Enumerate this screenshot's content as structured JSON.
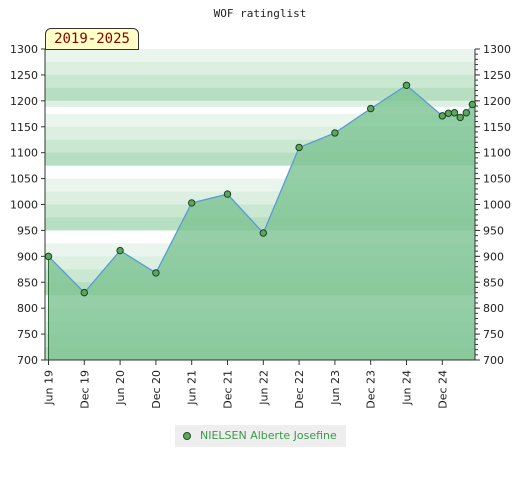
{
  "chart_data": {
    "type": "area",
    "title": "WOF ratinglist",
    "period_badge": "2019-2025",
    "ylim": [
      700,
      1300
    ],
    "yticks": [
      700,
      750,
      800,
      850,
      900,
      950,
      1000,
      1050,
      1100,
      1150,
      1200,
      1250,
      1300
    ],
    "ytick_labels": [
      "700",
      "750",
      "800",
      "850",
      "900",
      "950",
      "1000",
      "1050",
      "1100",
      "1150",
      "1200",
      "1250",
      "1300"
    ],
    "x_tick_labels": [
      "Jun 19",
      "Dec 19",
      "Jun 20",
      "Dec 20",
      "Jun 21",
      "Dec 21",
      "Jun 22",
      "Dec 22",
      "Jun 23",
      "Dec 23",
      "Jun 24",
      "Dec 24"
    ],
    "xlim": [
      0,
      12.45
    ],
    "grid": true,
    "legend_position": "bottom-center",
    "series": [
      {
        "name": "NIELSEN Alberte Josefine",
        "color": "#5aa860",
        "line_color": "#5b9bd5",
        "fill_color": "#7fc494",
        "points": [
          {
            "x": 0,
            "y": 900
          },
          {
            "x": 1,
            "y": 830
          },
          {
            "x": 2,
            "y": 911
          },
          {
            "x": 3,
            "y": 868
          },
          {
            "x": 4,
            "y": 1003
          },
          {
            "x": 5,
            "y": 1020
          },
          {
            "x": 6,
            "y": 945
          },
          {
            "x": 7,
            "y": 1110
          },
          {
            "x": 8,
            "y": 1138
          },
          {
            "x": 9,
            "y": 1185
          },
          {
            "x": 10,
            "y": 1230
          },
          {
            "x": 11,
            "y": 1171
          },
          {
            "x": 11.17,
            "y": 1176
          },
          {
            "x": 11.34,
            "y": 1177
          },
          {
            "x": 11.5,
            "y": 1168
          },
          {
            "x": 11.67,
            "y": 1177
          },
          {
            "x": 11.84,
            "y": 1193
          }
        ]
      }
    ]
  },
  "legend": {
    "label": "NIELSEN Alberte Josefine"
  }
}
